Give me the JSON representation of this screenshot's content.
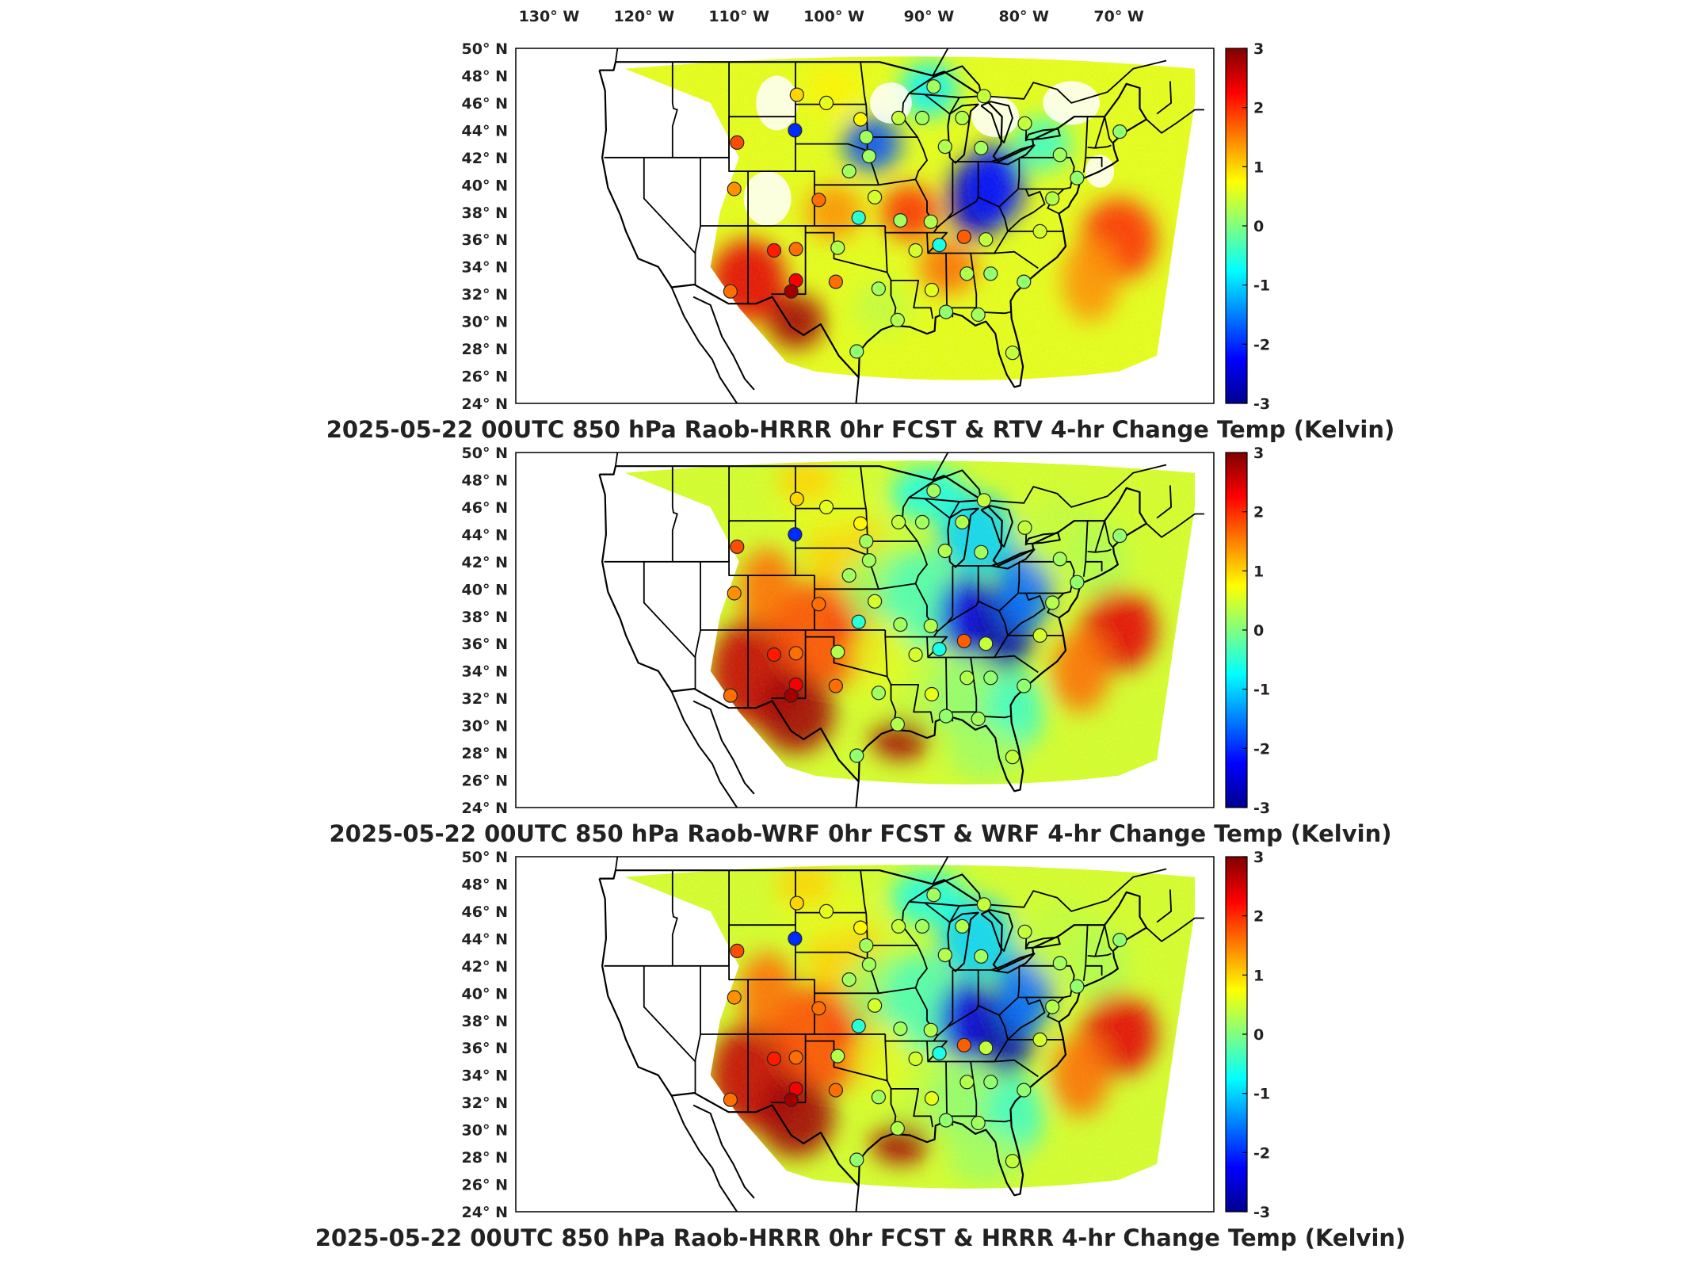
{
  "figure": {
    "lon_ticks": [
      {
        "lon": -130,
        "label": "130° W"
      },
      {
        "lon": -120,
        "label": "120° W"
      },
      {
        "lon": -110,
        "label": "110° W"
      },
      {
        "lon": -100,
        "label": "100° W"
      },
      {
        "lon": -90,
        "label": "90° W"
      },
      {
        "lon": -80,
        "label": "80° W"
      },
      {
        "lon": -70,
        "label": "70° W"
      }
    ],
    "lat_ticks": [
      {
        "lat": 50,
        "label": "50° N"
      },
      {
        "lat": 48,
        "label": "48° N"
      },
      {
        "lat": 46,
        "label": "46° N"
      },
      {
        "lat": 44,
        "label": "44° N"
      },
      {
        "lat": 42,
        "label": "42° N"
      },
      {
        "lat": 40,
        "label": "40° N"
      },
      {
        "lat": 38,
        "label": "38° N"
      },
      {
        "lat": 36,
        "label": "36° N"
      },
      {
        "lat": 34,
        "label": "34° N"
      },
      {
        "lat": 32,
        "label": "32° N"
      },
      {
        "lat": 30,
        "label": "30° N"
      },
      {
        "lat": 28,
        "label": "28° N"
      },
      {
        "lat": 26,
        "label": "26° N"
      },
      {
        "lat": 24,
        "label": "24° N"
      }
    ],
    "colorbar": {
      "min": -3,
      "max": 3,
      "ticks": [
        "3",
        "2",
        "1",
        "0",
        "-1",
        "-2",
        "-3"
      ],
      "colormap": [
        "#00008f",
        "#0000ff",
        "#0080ff",
        "#00ffff",
        "#80ff80",
        "#ffff00",
        "#ff8000",
        "#ff0000",
        "#800000"
      ]
    },
    "panels": [
      {
        "title": "2025-05-22 00UTC 850 hPa Raob-HRRR 0hr FCST & RTV 4-hr Change Temp (Kelvin)",
        "field_style": "sparse",
        "raob_values": [
          1.8,
          1.0,
          0.6,
          0.8,
          -2.0,
          0.2,
          0.4,
          0.2,
          0.5,
          0.2,
          1.4,
          0.2,
          2.1,
          1.6,
          0.3,
          1.6,
          -0.5,
          0.5,
          0.3,
          2.3,
          1.6,
          0.2,
          0.6,
          -0.6,
          0.3,
          0.1,
          0.4,
          1.7,
          2.8,
          1.6,
          0.1,
          0.3,
          0.1,
          0.2,
          0.4,
          0.1,
          0.5,
          0.3,
          0.1,
          0.2,
          0.4,
          0.2,
          0.3,
          0.3,
          0.2,
          0.2,
          0.4,
          0.1
        ]
      },
      {
        "title": "2025-05-22 00UTC 850 hPa Raob-WRF 0hr FCST & WRF 4-hr Change Temp (Kelvin)",
        "field_style": "full",
        "raob_values": [
          1.8,
          1.0,
          0.6,
          0.8,
          -2.0,
          0.2,
          0.4,
          0.2,
          0.5,
          0.2,
          1.4,
          0.2,
          2.1,
          1.6,
          0.3,
          1.6,
          -0.5,
          0.5,
          0.3,
          2.3,
          1.6,
          0.2,
          0.6,
          -0.6,
          0.3,
          0.1,
          0.4,
          1.7,
          2.8,
          1.6,
          0.1,
          0.3,
          0.1,
          0.2,
          0.4,
          0.1,
          0.5,
          0.3,
          0.1,
          0.2,
          0.4,
          0.2,
          0.3,
          0.3,
          0.2,
          0.2,
          0.4,
          0.1
        ]
      },
      {
        "title": "2025-05-22 00UTC 850 hPa Raob-HRRR 0hr FCST & HRRR 4-hr Change Temp (Kelvin)",
        "field_style": "full",
        "raob_values": [
          1.8,
          1.0,
          0.6,
          0.8,
          -2.0,
          0.2,
          0.4,
          0.2,
          0.5,
          0.2,
          1.4,
          0.2,
          2.1,
          1.6,
          0.3,
          1.6,
          -0.5,
          0.5,
          0.3,
          2.3,
          1.6,
          0.2,
          0.6,
          -0.6,
          0.3,
          0.1,
          0.4,
          1.7,
          2.8,
          1.6,
          0.1,
          0.3,
          0.1,
          0.2,
          0.4,
          0.1,
          0.5,
          0.3,
          0.1,
          0.2,
          0.4,
          0.2,
          0.3,
          0.3,
          0.2,
          0.2,
          0.4,
          0.1
        ]
      }
    ]
  }
}
